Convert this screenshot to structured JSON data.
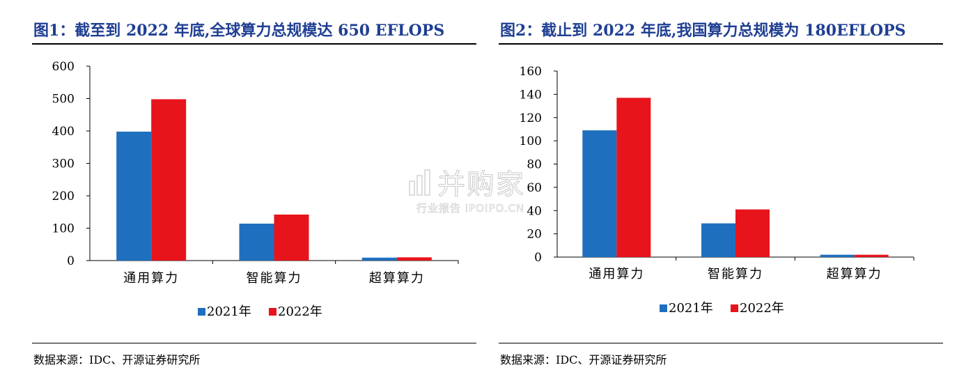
{
  "panels": [
    {
      "title": "图1：截至到 2022 年底,全球算力总规模达 650 EFLOPS",
      "source": "数据来源：IDC、开源证券研究所"
    },
    {
      "title": "图2：截止到 2022 年底,我国算力总规模为 180EFLOPS",
      "source": "数据来源：IDC、开源证券研究所"
    }
  ],
  "watermark": {
    "main": "并购家",
    "sub": "行业报告 IPOIPO.CN"
  },
  "colors": {
    "series_2021": "#1f6fbf",
    "series_2022": "#e8141b",
    "title": "#1f3f93"
  },
  "chart_data": [
    {
      "type": "bar",
      "categories": [
        "通用算力",
        "智能算力",
        "超算算力"
      ],
      "series": [
        {
          "name": "2021年",
          "values": [
            398,
            114,
            9
          ]
        },
        {
          "name": "2022年",
          "values": [
            498,
            142,
            10
          ]
        }
      ],
      "ylim": [
        0,
        600
      ],
      "yticks": [
        0,
        100,
        200,
        300,
        400,
        500,
        600
      ],
      "legend": "bottom-center",
      "grid": false
    },
    {
      "type": "bar",
      "categories": [
        "通用算力",
        "智能算力",
        "超算算力"
      ],
      "series": [
        {
          "name": "2021年",
          "values": [
            109,
            29,
            2
          ]
        },
        {
          "name": "2022年",
          "values": [
            137,
            41,
            2
          ]
        }
      ],
      "ylim": [
        0,
        160
      ],
      "yticks": [
        0,
        20,
        40,
        60,
        80,
        100,
        120,
        140,
        160
      ],
      "legend": "bottom-center",
      "grid": false
    }
  ]
}
